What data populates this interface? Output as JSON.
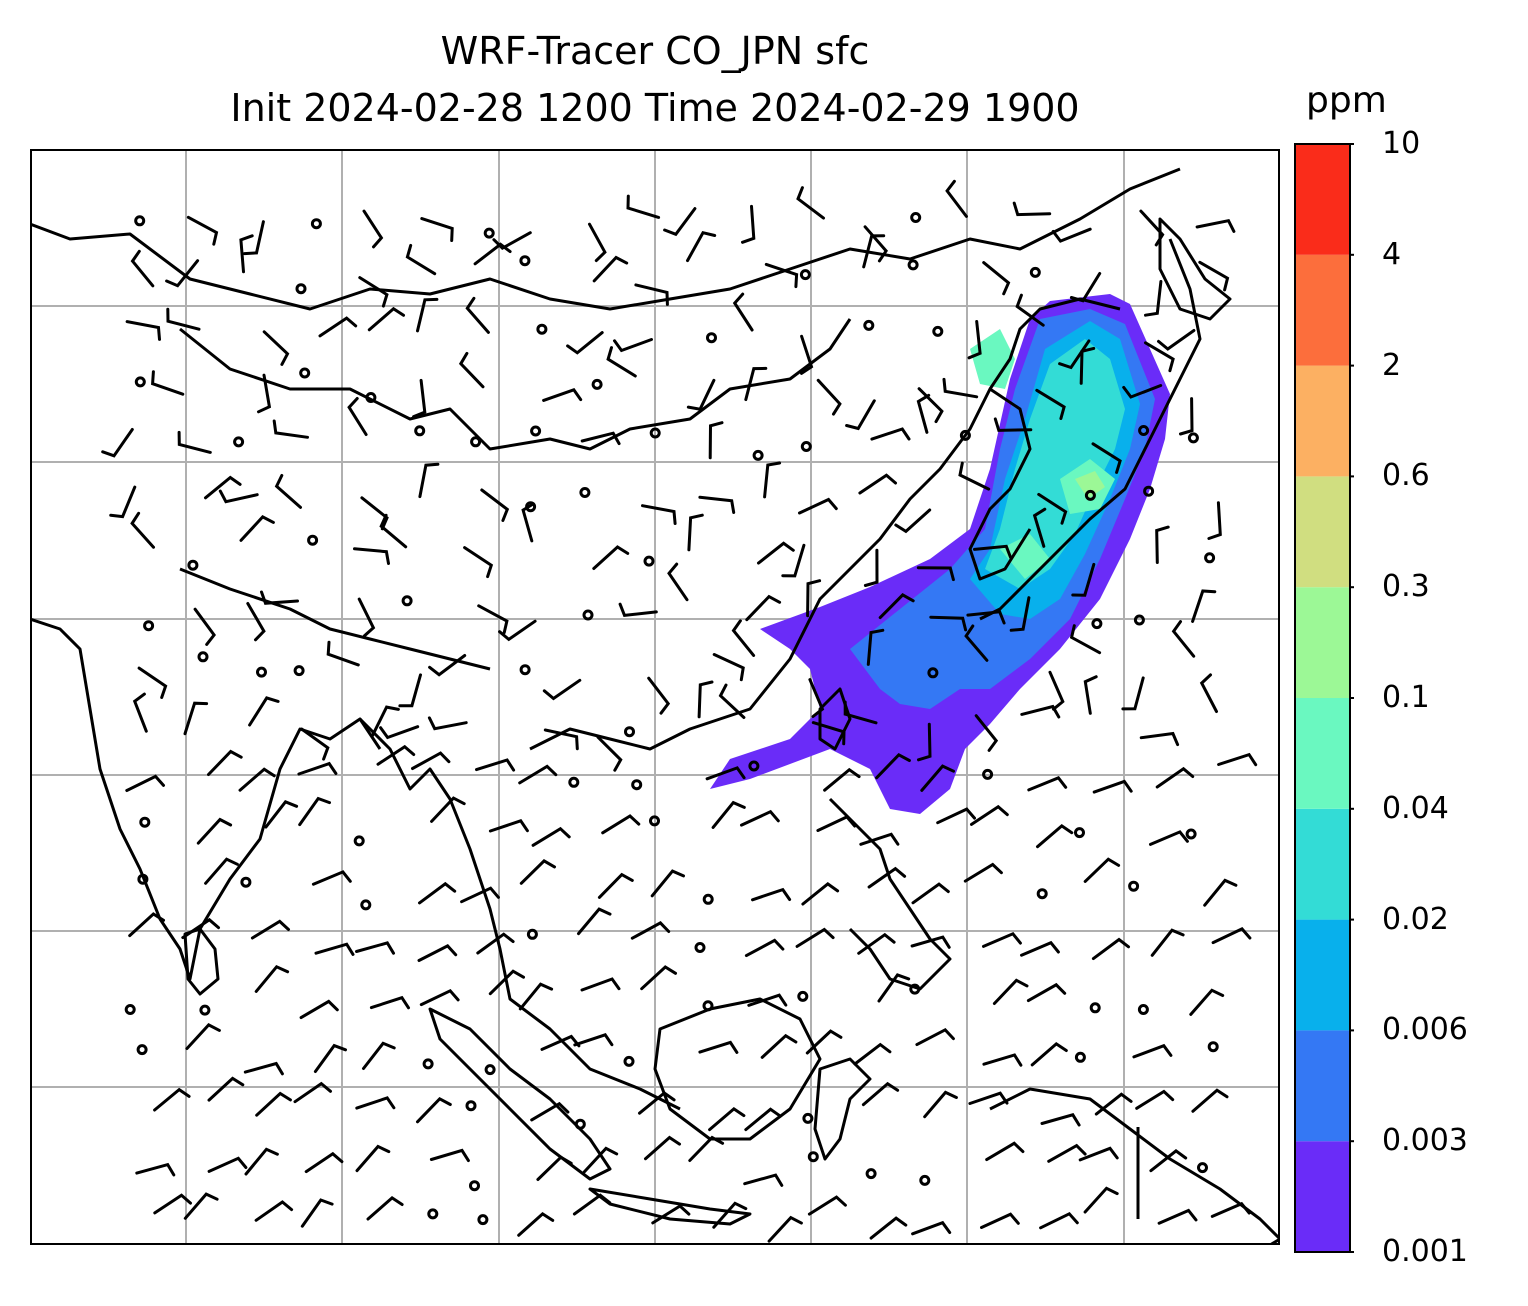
{
  "map": {
    "title_line1": "WRF-Tracer CO_JPN sfc",
    "title_line2": "Init 2024-02-28 1200 Time 2024-02-29 1900",
    "field": "CO tracer concentration (surface)",
    "extent": "East Asia / Southeast Asia",
    "gridlines": true,
    "overlay": "wind barbs and calm circles"
  },
  "colorbar": {
    "unit": "ppm",
    "levels": [
      "0.001",
      "0.003",
      "0.006",
      "0.02",
      "0.04",
      "0.1",
      "0.3",
      "0.6",
      "2",
      "4",
      "10"
    ],
    "colors": [
      "#6a2cf8",
      "#3478f4",
      "#08b0ec",
      "#33dcd6",
      "#6af8c0",
      "#9cf896",
      "#d0de80",
      "#fcb062",
      "#fc6e3c",
      "#fa2c1a"
    ]
  },
  "colors": {
    "coastline": "#000000",
    "grid": "#b0b0b0"
  }
}
